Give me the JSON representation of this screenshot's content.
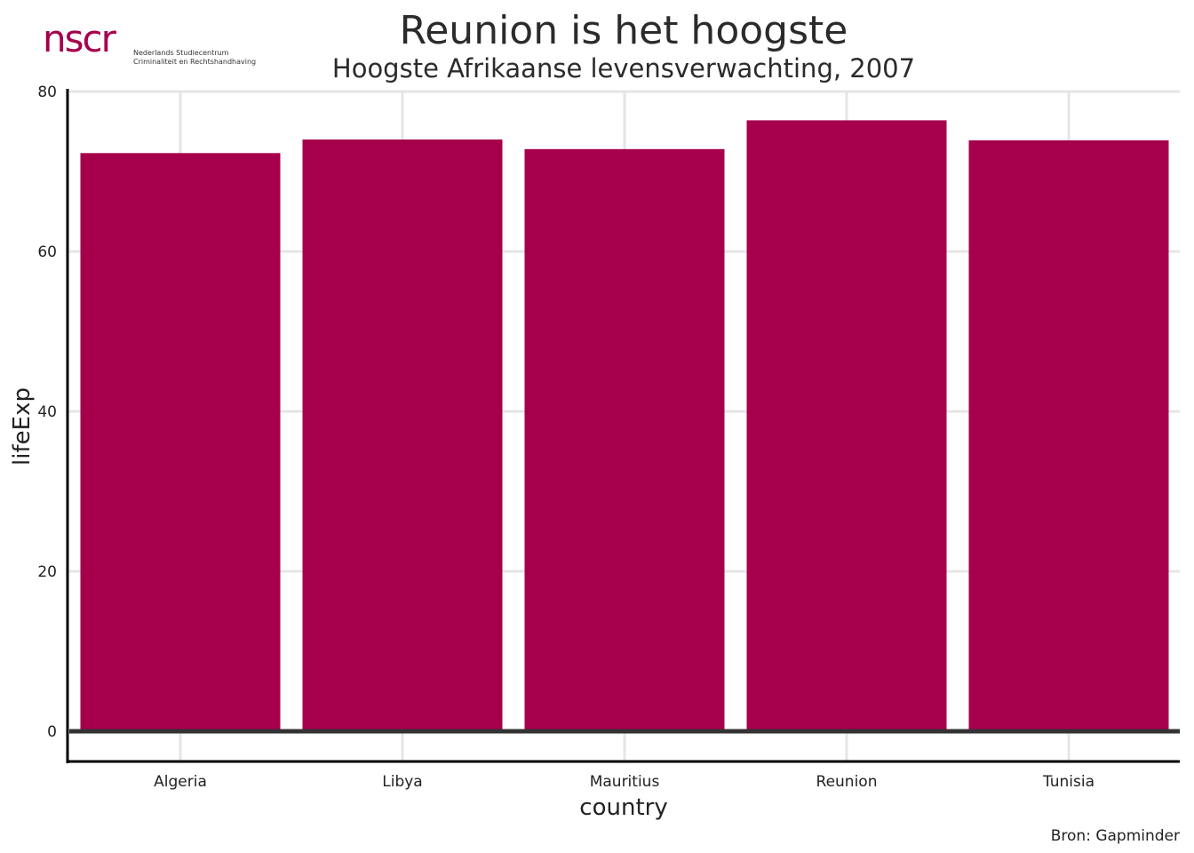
{
  "logo": {
    "mark": "nscr",
    "line1": "Nederlands Studiecentrum",
    "line2": "Criminaliteit en Rechtshandhaving"
  },
  "colors": {
    "bar": "#A6004D",
    "grid": "#E5E5E5",
    "axis": "#000000",
    "zero_line": "#333333",
    "logo": "#A6004D"
  },
  "chart_data": {
    "type": "bar",
    "title": "Reunion is het hoogste",
    "subtitle": "Hoogste Afrikaanse levensverwachting, 2007",
    "xlabel": "country",
    "ylabel": "lifeExp",
    "caption": "Bron: Gapminder",
    "categories": [
      "Algeria",
      "Libya",
      "Mauritius",
      "Reunion",
      "Tunisia"
    ],
    "values": [
      72.3,
      74.0,
      72.8,
      76.4,
      73.9
    ],
    "ylim": [
      0,
      80
    ],
    "yticks": [
      0,
      20,
      40,
      60,
      80
    ],
    "grid": true,
    "legend": "none"
  }
}
